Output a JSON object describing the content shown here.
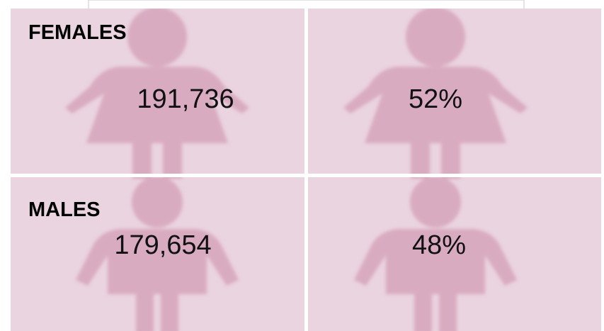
{
  "rows": [
    {
      "label": "FEMALES",
      "count": "191,736",
      "percent": "52%"
    },
    {
      "label": "MALES",
      "count": "179,654",
      "percent": "48%"
    }
  ]
}
